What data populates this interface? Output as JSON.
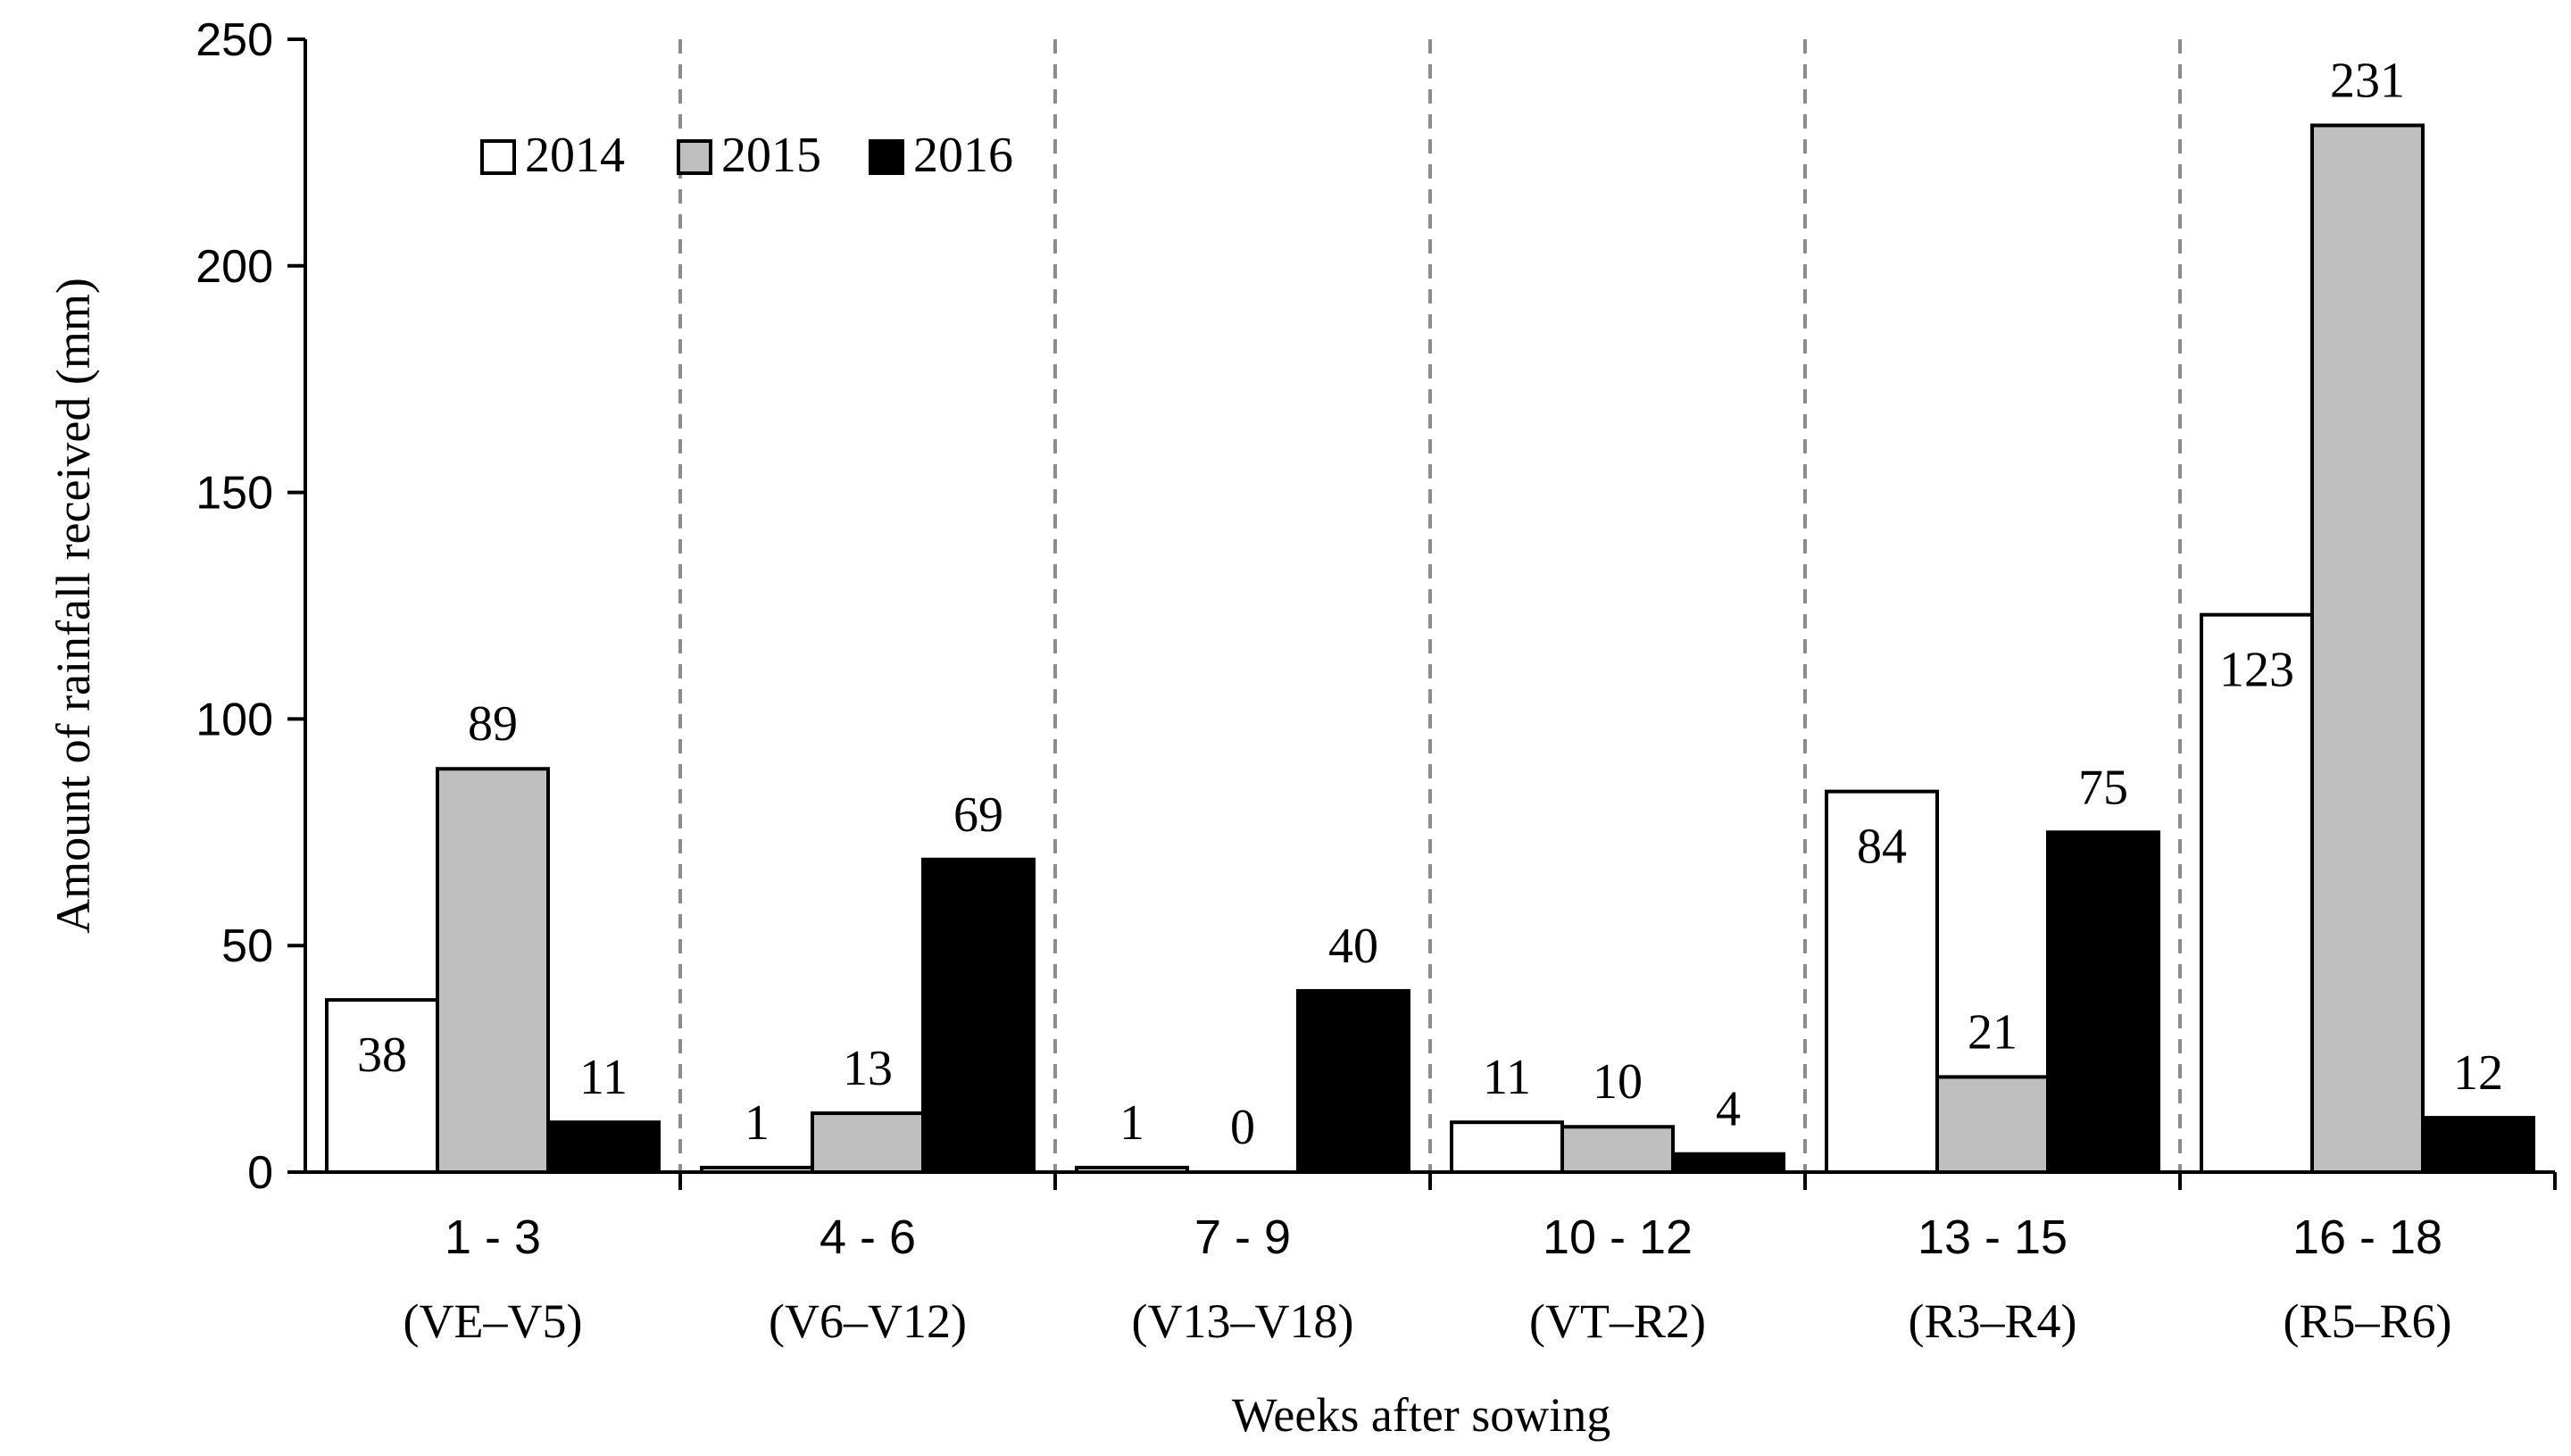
{
  "chart_data": {
    "type": "bar",
    "title": "",
    "xlabel": "Weeks after sowing",
    "ylabel": "Amount of rainfall received (mm)",
    "ylim": [
      0,
      250
    ],
    "yticks": [
      "0",
      "50",
      "100",
      "150",
      "200",
      "250"
    ],
    "categories": [
      "1 - 3",
      "4 - 6",
      "7 - 9",
      "10 - 12",
      "13 - 15",
      "16 - 18"
    ],
    "stages": [
      "(VE–V5)",
      "(V6–V12)",
      "(V13–V18)",
      "(VT–R2)",
      "(R3–R4)",
      "(R5–R6)"
    ],
    "series": [
      {
        "name": "2014",
        "color": "#ffffff",
        "values": [
          38,
          1,
          1,
          11,
          84,
          123
        ],
        "labels": [
          "38",
          "1",
          "1",
          "11",
          "84",
          "123"
        ]
      },
      {
        "name": "2015",
        "color": "#bfbfbf",
        "values": [
          89,
          13,
          0,
          10,
          21,
          231
        ],
        "labels": [
          "89",
          "13",
          "0",
          "10",
          "21",
          "231"
        ]
      },
      {
        "name": "2016",
        "color": "#000000",
        "values": [
          11,
          69,
          40,
          4,
          75,
          12
        ],
        "labels": [
          "11",
          "69",
          "40",
          "4",
          "75",
          "12"
        ]
      }
    ],
    "label_inside": [
      [
        true,
        false,
        false,
        false,
        true,
        true
      ],
      [
        false,
        false,
        false,
        false,
        false,
        false
      ],
      [
        false,
        false,
        false,
        false,
        false,
        false
      ]
    ],
    "legend_position": "top-left",
    "grid": false,
    "group_separators": "dashed vertical lines"
  }
}
